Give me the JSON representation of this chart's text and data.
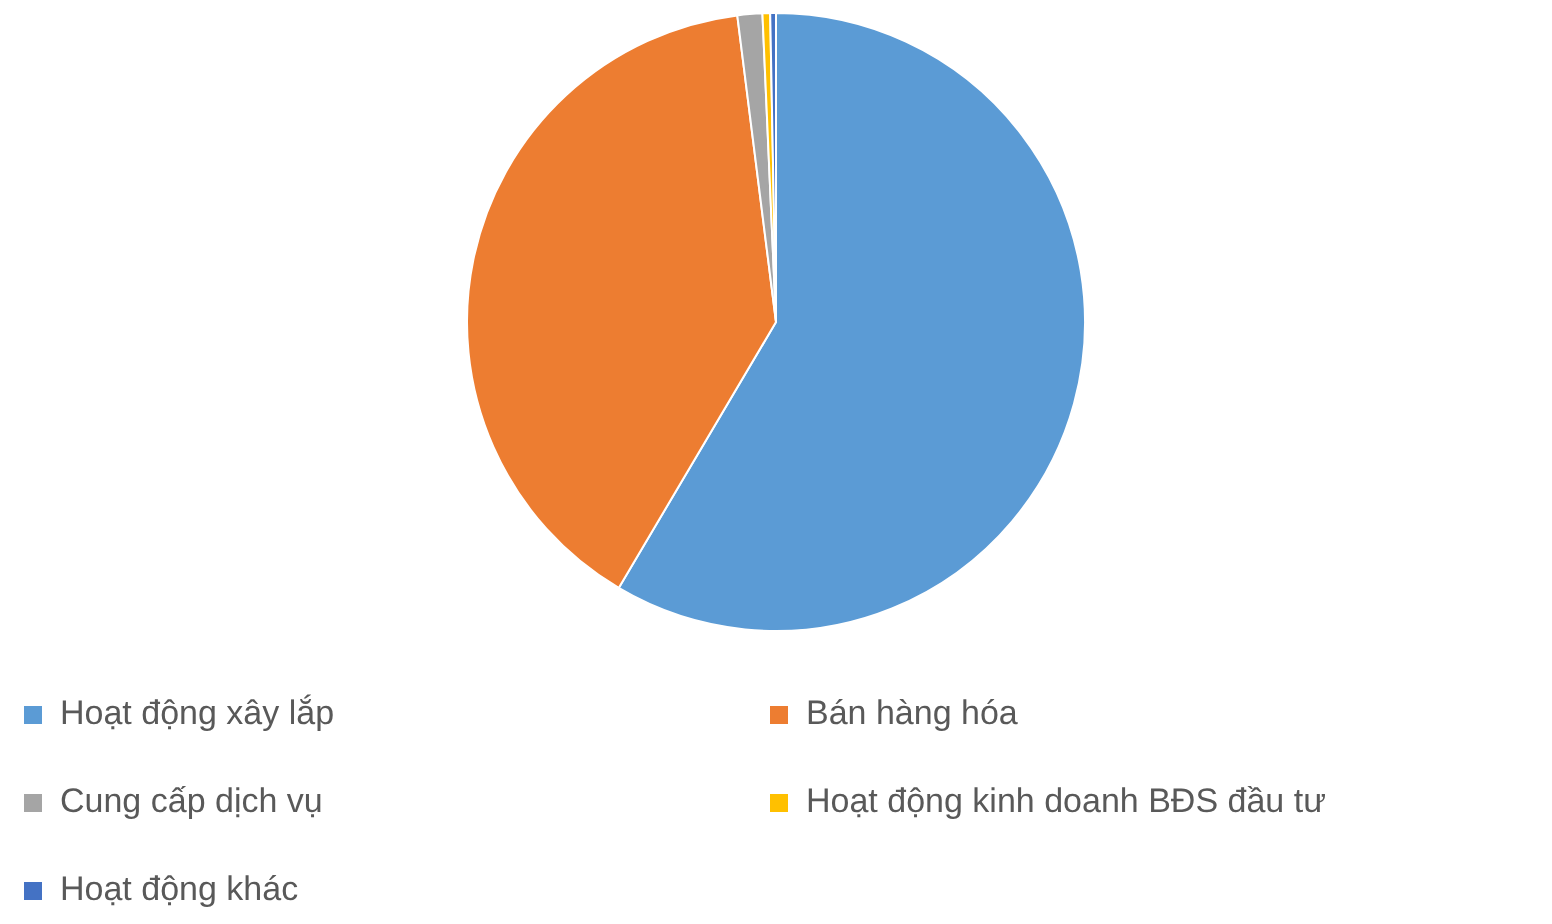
{
  "chart_data": {
    "type": "pie",
    "categories": [
      "Hoạt động xây lắp",
      "Bán hàng hóa",
      "Cung cấp dịch vụ",
      "Hoạt động kinh doanh BĐS đầu tư",
      "Hoạt động khác"
    ],
    "values": [
      58.5,
      39.5,
      1.3,
      0.4,
      0.3
    ],
    "colors": [
      "#5b9bd5",
      "#ed7d31",
      "#a5a5a5",
      "#ffc000",
      "#4472c4"
    ],
    "legend": "bottom"
  }
}
